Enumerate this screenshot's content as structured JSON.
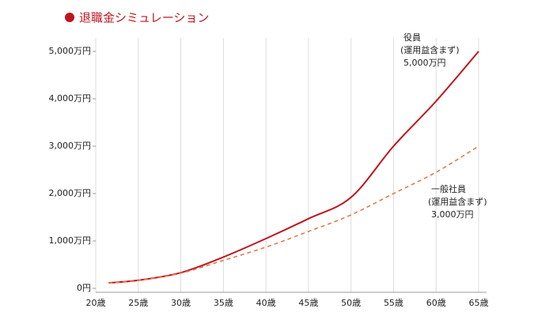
{
  "chart_data": {
    "type": "line",
    "title": "退職金シミュレーション",
    "x": [
      21.5,
      25,
      30,
      35,
      40,
      45,
      50,
      55,
      60,
      65
    ],
    "series": [
      {
        "name": "役員",
        "annotation": "(運用益含まず)",
        "color": "#c0141e",
        "dash": false,
        "values": [
          115,
          170,
          330,
          660,
          1050,
          1470,
          1920,
          3000,
          3950,
          5000
        ],
        "value_labels": [
          null,
          null,
          null,
          null,
          null,
          null,
          null,
          null,
          null,
          "5,000万円"
        ]
      },
      {
        "name": "一般社員",
        "annotation": "(運用益含まず)",
        "color": "#e07a50",
        "dash": true,
        "values": [
          115,
          165,
          320,
          590,
          870,
          1200,
          1550,
          2000,
          2450,
          3000
        ],
        "value_labels": [
          null,
          null,
          null,
          null,
          null,
          null,
          null,
          null,
          null,
          "3,000万円"
        ]
      }
    ],
    "xlim": [
      20,
      65
    ],
    "xticks": [
      {
        "value": 20,
        "label": "20歳"
      },
      {
        "value": 25,
        "label": "25歳"
      },
      {
        "value": 30,
        "label": "30歳"
      },
      {
        "value": 35,
        "label": "35歳"
      },
      {
        "value": 40,
        "label": "40歳"
      },
      {
        "value": 45,
        "label": "45歳"
      },
      {
        "value": 50,
        "label": "50歳"
      },
      {
        "value": 55,
        "label": "55歳"
      },
      {
        "value": 60,
        "label": "60歳"
      },
      {
        "value": 65,
        "label": "65歳"
      }
    ],
    "ylim": [
      0,
      5000
    ],
    "yticks": [
      {
        "value": 0,
        "label": "0円"
      },
      {
        "value": 1000,
        "label": "1,000万円"
      },
      {
        "value": 2000,
        "label": "2,000万円"
      },
      {
        "value": 3000,
        "label": "3,000万円"
      },
      {
        "value": 4000,
        "label": "4,000万円"
      },
      {
        "value": 5000,
        "label": "5,000万円"
      }
    ],
    "grid": true
  }
}
